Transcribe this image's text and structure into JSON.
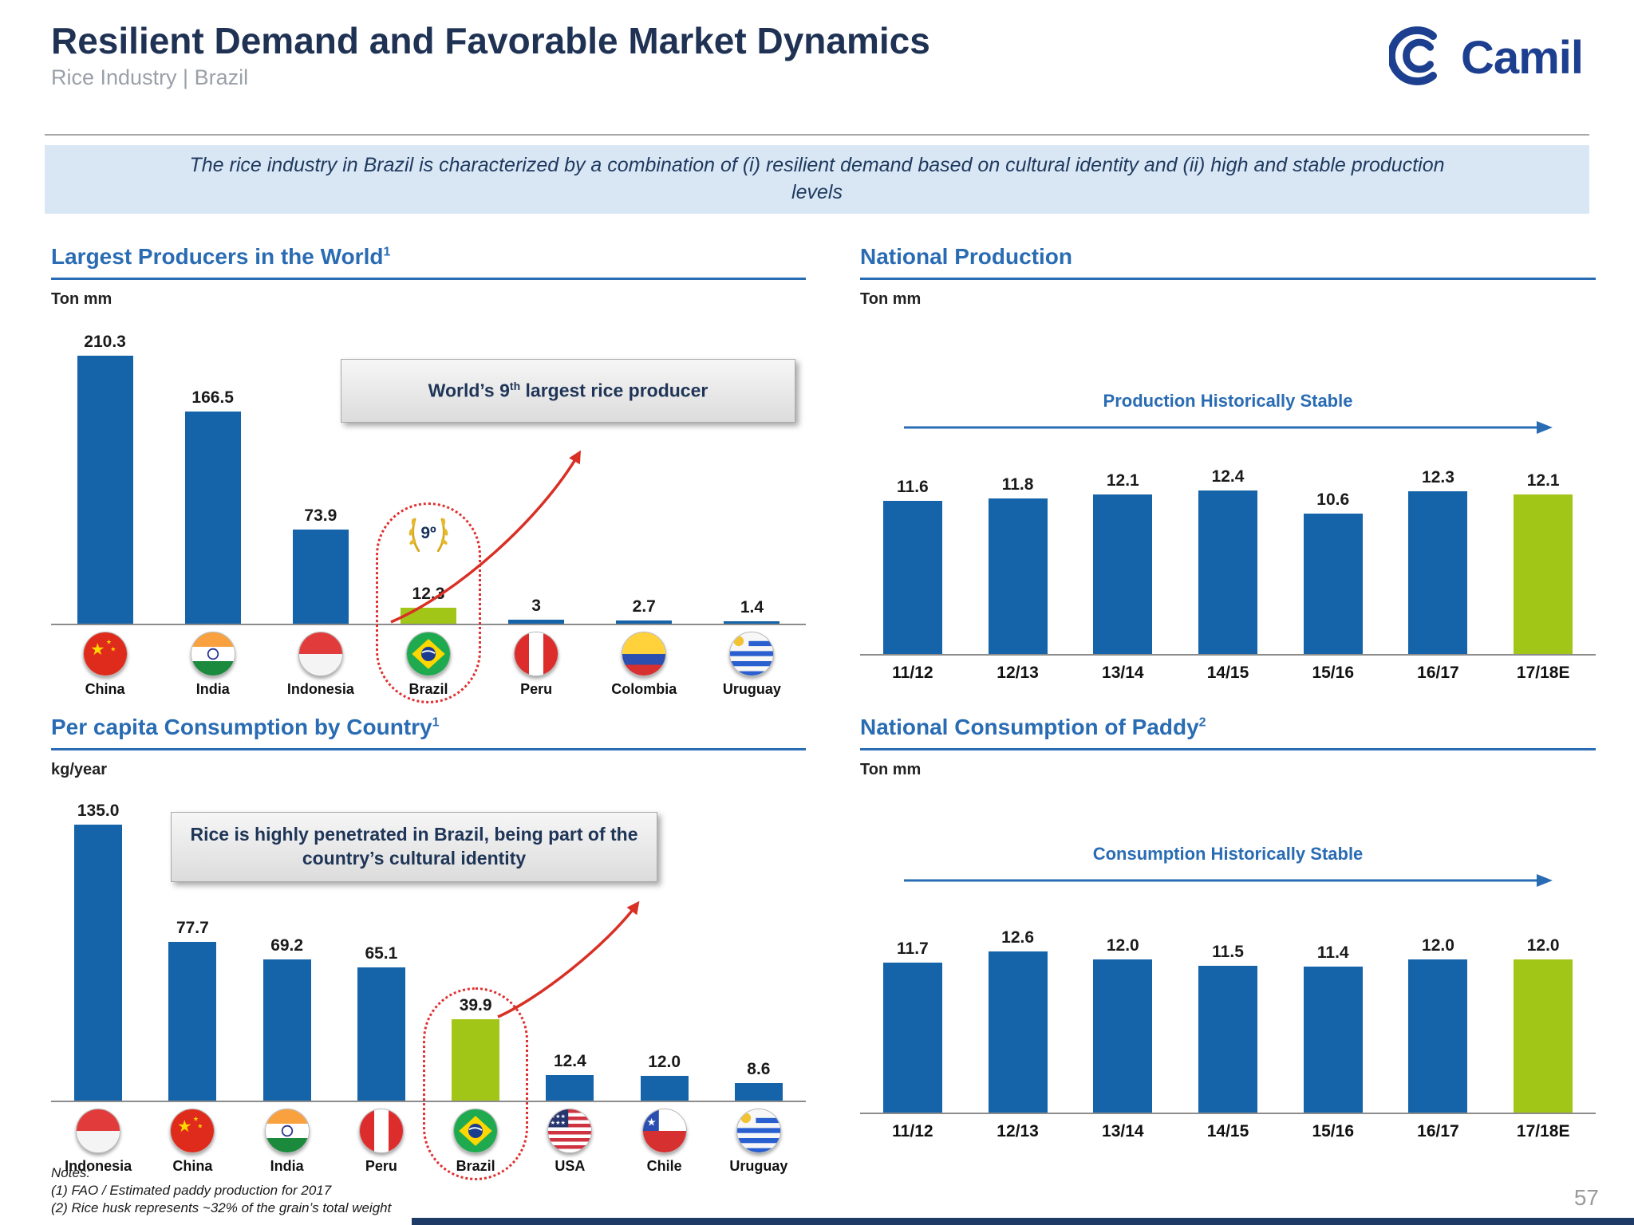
{
  "header": {
    "title": "Resilient Demand and Favorable Market Dynamics",
    "subtitle": "Rice Industry | Brazil",
    "logo_text": "Camil"
  },
  "banner": {
    "text": "The rice industry in Brazil is characterized by a combination of (i) resilient demand based on cultural identity and (ii) high and stable production levels"
  },
  "panels": [
    {
      "heading": "Largest Producers in the World",
      "heading_sup": "1",
      "unit": "Ton mm"
    },
    {
      "heading": "National Production",
      "heading_sup": "",
      "unit": "Ton mm",
      "trend_label": "Production Historically Stable"
    },
    {
      "heading": "Per capita Consumption by Country",
      "heading_sup": "1",
      "unit": "kg/year"
    },
    {
      "heading": "National Consumption of Paddy",
      "heading_sup": "2",
      "unit": "Ton mm",
      "trend_label": "Consumption Historically Stable"
    }
  ],
  "callouts": {
    "producer_prefix": "World’s 9",
    "producer_sup": "th",
    "producer_suffix": " largest rice producer",
    "consumption": "Rice is highly penetrated in Brazil, being part of the country’s cultural identity",
    "badge": "9º"
  },
  "chart_data": [
    {
      "type": "bar",
      "title": "Largest Producers in the World¹",
      "ylabel": "Ton mm",
      "categories": [
        "China",
        "India",
        "Indonesia",
        "Brazil",
        "Peru",
        "Colombia",
        "Uruguay"
      ],
      "values": [
        210.3,
        166.5,
        73.9,
        12.3,
        3,
        2.7,
        1.4
      ],
      "value_labels": [
        "210.3",
        "166.5",
        "73.9",
        "12.3",
        "3",
        "2.7",
        "1.4"
      ],
      "flags": [
        "china",
        "india",
        "indonesia",
        "brazil",
        "peru",
        "colombia",
        "uruguay"
      ],
      "highlight_index": 3,
      "green_indices": [
        3
      ],
      "ylim": [
        0,
        244
      ],
      "annotation": "World's 9th largest rice producer",
      "badge": "9º",
      "legend": "none",
      "grid": false
    },
    {
      "type": "bar",
      "title": "National Production",
      "ylabel": "Ton mm",
      "categories": [
        "11/12",
        "12/13",
        "13/14",
        "14/15",
        "15/16",
        "16/17",
        "17/18E"
      ],
      "values": [
        11.6,
        11.8,
        12.1,
        12.4,
        10.6,
        12.3,
        12.1
      ],
      "value_labels": [
        "11.6",
        "11.8",
        "12.1",
        "12.4",
        "10.6",
        "12.3",
        "12.1"
      ],
      "green_indices": [
        6
      ],
      "ylim": [
        0,
        15.7
      ],
      "annotation": "Production Historically Stable",
      "legend": "none",
      "grid": false
    },
    {
      "type": "bar",
      "title": "Per capita Consumption by Country¹",
      "ylabel": "kg/year",
      "categories": [
        "Indonesia",
        "China",
        "India",
        "Peru",
        "Brazil",
        "USA",
        "Chile",
        "Uruguay"
      ],
      "values": [
        135.0,
        77.7,
        69.2,
        65.1,
        39.9,
        12.4,
        12.0,
        8.6
      ],
      "value_labels": [
        "135.0",
        "77.7",
        "69.2",
        "65.1",
        "39.9",
        "12.4",
        "12.0",
        "8.6"
      ],
      "flags": [
        "indonesia",
        "china",
        "india",
        "peru",
        "brazil",
        "usa",
        "chile",
        "uruguay"
      ],
      "highlight_index": 4,
      "green_indices": [
        4
      ],
      "ylim": [
        0,
        154
      ],
      "annotation": "Rice is highly penetrated in Brazil, being part of the country's cultural identity",
      "legend": "none",
      "grid": false
    },
    {
      "type": "bar",
      "title": "National Consumption of Paddy²",
      "ylabel": "Ton mm",
      "categories": [
        "11/12",
        "12/13",
        "13/14",
        "14/15",
        "15/16",
        "16/17",
        "17/18E"
      ],
      "values": [
        11.7,
        12.6,
        12.0,
        11.5,
        11.4,
        12.0,
        12.0
      ],
      "value_labels": [
        "11.7",
        "12.6",
        "12.0",
        "11.5",
        "11.4",
        "12.0",
        "12.0"
      ],
      "green_indices": [
        6
      ],
      "ylim": [
        0,
        15.6
      ],
      "annotation": "Consumption Historically Stable",
      "legend": "none",
      "grid": false
    }
  ],
  "footer": {
    "notes_label": "Notes:",
    "notes": [
      "(1) FAO / Estimated paddy production for 2017",
      "(2) Rice husk represents ~32% of the grain’s total weight"
    ],
    "page_number": "57"
  },
  "colors": {
    "bar_blue": "#1563a9",
    "bar_green": "#a2c617",
    "heading_blue": "#2a6cb3",
    "navy": "#1f3254",
    "banner_bg": "#d9e7f5",
    "accent_red": "#e03030",
    "axis_gray": "#8c8c8c"
  }
}
